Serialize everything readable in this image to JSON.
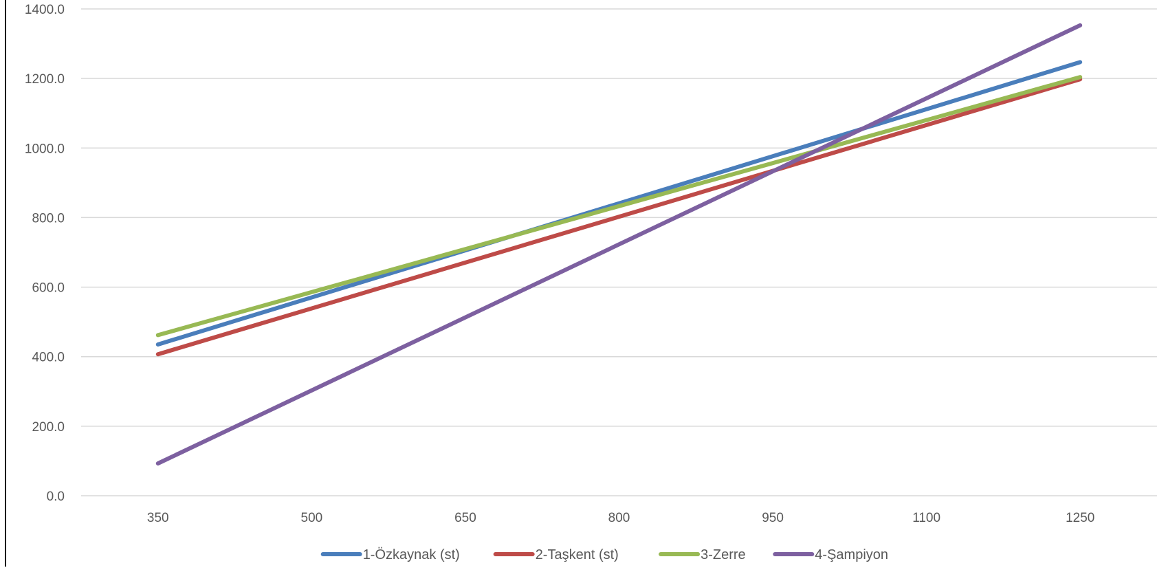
{
  "chart_data": {
    "type": "line",
    "title": "",
    "xlabel": "",
    "ylabel": "",
    "x": [
      350,
      500,
      650,
      800,
      950,
      1100,
      1250
    ],
    "x_tick_labels": [
      "350",
      "500",
      "650",
      "800",
      "950",
      "1100",
      "1250"
    ],
    "y_tick_labels": [
      "0.0",
      "200.0",
      "400.0",
      "600.0",
      "800.0",
      "1000.0",
      "1200.0",
      "1400.0"
    ],
    "ylim": [
      0,
      1400
    ],
    "xlim": [
      275,
      1325
    ],
    "grid": true,
    "legend_position": "bottom",
    "series": [
      {
        "name": "1-Özkaynak (st)",
        "color": "#4a7ebb",
        "x": [
          350,
          1250
        ],
        "values": [
          435,
          1247
        ]
      },
      {
        "name": "2-Taşkent (st)",
        "color": "#be4b48",
        "x": [
          350,
          1250
        ],
        "values": [
          407,
          1198
        ]
      },
      {
        "name": "3-Zerre",
        "color": "#98b954",
        "x": [
          350,
          1250
        ],
        "values": [
          462,
          1204
        ]
      },
      {
        "name": "4-Şampiyon",
        "color": "#7d60a0",
        "x": [
          350,
          1250
        ],
        "values": [
          93,
          1353
        ]
      }
    ]
  }
}
